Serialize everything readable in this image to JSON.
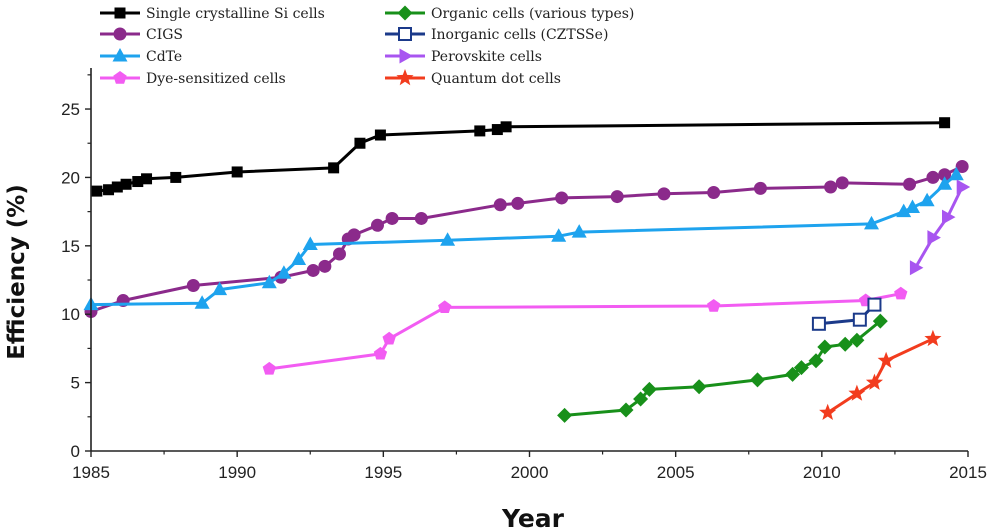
{
  "chart_data": {
    "type": "line",
    "title": "",
    "xlabel": "Year",
    "ylabel": "Efficiency (%)",
    "xlim": [
      1985,
      2015
    ],
    "ylim": [
      0,
      28
    ],
    "xticks": [
      1985,
      1990,
      1995,
      2000,
      2005,
      2010,
      2015
    ],
    "yticks": [
      0,
      5,
      10,
      15,
      20,
      25
    ],
    "grid": false,
    "legend_position": "top-left, two columns",
    "series": [
      {
        "name": "Single crystalline Si cells",
        "color": "#000000",
        "marker": "square",
        "points": [
          [
            1985.2,
            19.0
          ],
          [
            1985.6,
            19.1
          ],
          [
            1985.9,
            19.3
          ],
          [
            1986.2,
            19.5
          ],
          [
            1986.6,
            19.7
          ],
          [
            1986.9,
            19.9
          ],
          [
            1987.9,
            20.0
          ],
          [
            1990.0,
            20.4
          ],
          [
            1993.3,
            20.7
          ],
          [
            1994.2,
            22.5
          ],
          [
            1994.9,
            23.1
          ],
          [
            1998.3,
            23.4
          ],
          [
            1998.9,
            23.5
          ],
          [
            1999.2,
            23.7
          ],
          [
            2014.2,
            24.0
          ]
        ]
      },
      {
        "name": "CIGS",
        "color": "#8b2a8b",
        "marker": "circle",
        "points": [
          [
            1985.0,
            10.2
          ],
          [
            1986.1,
            11.0
          ],
          [
            1988.5,
            12.1
          ],
          [
            1991.5,
            12.7
          ],
          [
            1992.6,
            13.2
          ],
          [
            1993.0,
            13.5
          ],
          [
            1993.5,
            14.4
          ],
          [
            1993.8,
            15.5
          ],
          [
            1994.0,
            15.8
          ],
          [
            1994.8,
            16.5
          ],
          [
            1995.3,
            17.0
          ],
          [
            1996.3,
            17.0
          ],
          [
            1999.0,
            18.0
          ],
          [
            1999.6,
            18.1
          ],
          [
            2001.1,
            18.5
          ],
          [
            2003.0,
            18.6
          ],
          [
            2004.6,
            18.8
          ],
          [
            2006.3,
            18.9
          ],
          [
            2007.9,
            19.2
          ],
          [
            2010.3,
            19.3
          ],
          [
            2010.7,
            19.6
          ],
          [
            2013.0,
            19.5
          ],
          [
            2013.8,
            20.0
          ],
          [
            2014.2,
            20.2
          ],
          [
            2014.8,
            20.8
          ]
        ]
      },
      {
        "name": "CdTe",
        "color": "#1ea3ee",
        "marker": "triangle-up",
        "points": [
          [
            1985.0,
            10.7
          ],
          [
            1988.8,
            10.8
          ],
          [
            1989.4,
            11.8
          ],
          [
            1991.1,
            12.3
          ],
          [
            1991.6,
            13.0
          ],
          [
            1992.1,
            14.0
          ],
          [
            1992.5,
            15.1
          ],
          [
            1997.2,
            15.4
          ],
          [
            2001.0,
            15.7
          ],
          [
            2001.7,
            16.0
          ],
          [
            2011.7,
            16.6
          ],
          [
            2012.8,
            17.5
          ],
          [
            2013.1,
            17.8
          ],
          [
            2013.6,
            18.3
          ],
          [
            2014.2,
            19.5
          ],
          [
            2014.6,
            20.2
          ]
        ]
      },
      {
        "name": "Dye-sensitized cells",
        "color": "#f25cf2",
        "marker": "pentagon",
        "points": [
          [
            1991.1,
            6.0
          ],
          [
            1994.9,
            7.1
          ],
          [
            1995.2,
            8.2
          ],
          [
            1997.1,
            10.5
          ],
          [
            2006.3,
            10.6
          ],
          [
            2011.5,
            11.0
          ],
          [
            2012.7,
            11.5
          ]
        ]
      },
      {
        "name": "Organic cells (various types)",
        "color": "#18901a",
        "marker": "diamond",
        "points": [
          [
            2001.2,
            2.6
          ],
          [
            2003.3,
            3.0
          ],
          [
            2003.8,
            3.8
          ],
          [
            2004.1,
            4.5
          ],
          [
            2005.8,
            4.7
          ],
          [
            2007.8,
            5.2
          ],
          [
            2009.0,
            5.6
          ],
          [
            2009.3,
            6.1
          ],
          [
            2009.8,
            6.6
          ],
          [
            2010.1,
            7.6
          ],
          [
            2010.8,
            7.8
          ],
          [
            2011.2,
            8.1
          ],
          [
            2012.0,
            9.5
          ]
        ]
      },
      {
        "name": "Inorganic cells (CZTSSe)",
        "color": "#1b3a8a",
        "marker": "open-square",
        "points": [
          [
            2009.9,
            9.3
          ],
          [
            2011.3,
            9.6
          ],
          [
            2011.8,
            10.7
          ]
        ]
      },
      {
        "name": "Perovskite cells",
        "color": "#a855f0",
        "marker": "triangle-right",
        "points": [
          [
            2013.2,
            13.4
          ],
          [
            2013.8,
            15.6
          ],
          [
            2014.3,
            17.1
          ],
          [
            2014.8,
            19.3
          ]
        ]
      },
      {
        "name": "Quantum dot cells",
        "color": "#f23c1e",
        "marker": "star",
        "points": [
          [
            2010.2,
            2.8
          ],
          [
            2011.2,
            4.2
          ],
          [
            2011.8,
            5.0
          ],
          [
            2012.2,
            6.6
          ],
          [
            2013.8,
            8.2
          ]
        ]
      }
    ]
  }
}
